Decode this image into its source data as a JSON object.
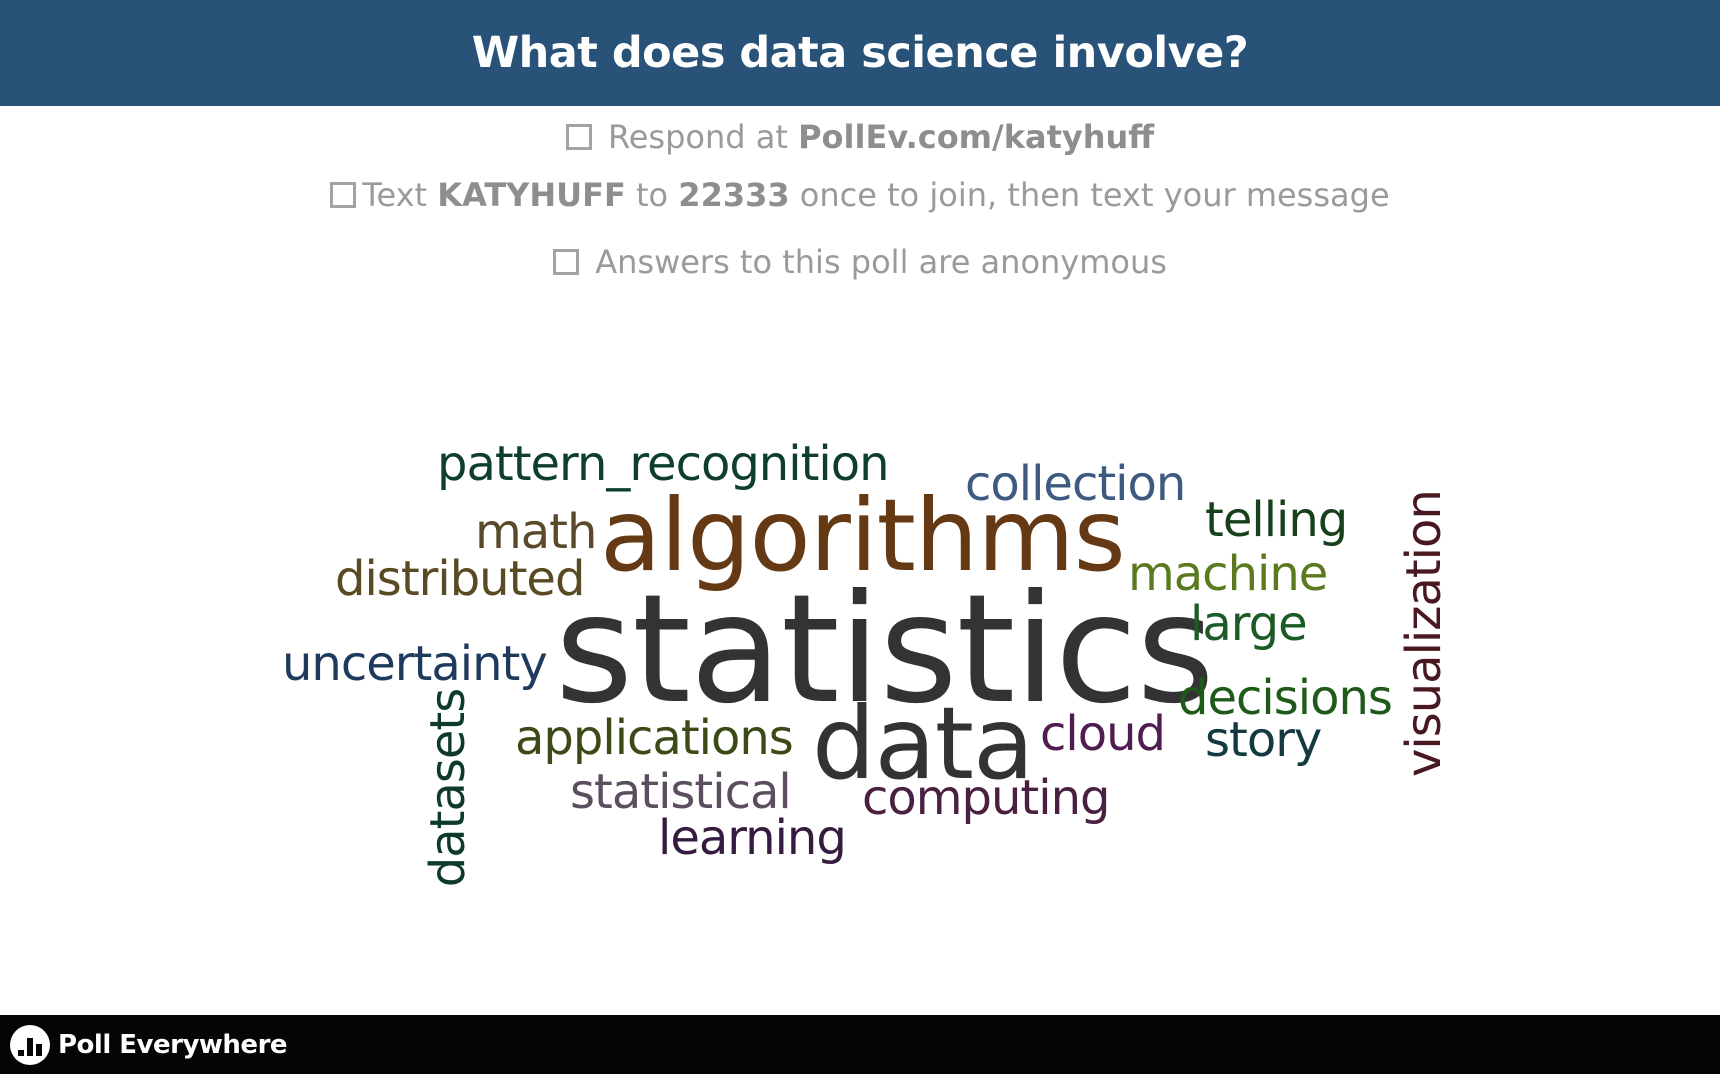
{
  "header": {
    "title": "What does data science involve?"
  },
  "instructions": {
    "line1": {
      "prefix": "Respond at ",
      "url": "PollEv.com/katyhuff"
    },
    "line2": {
      "prefix": "Text ",
      "keyword": "KATYHUFF",
      "middle": " to ",
      "number": "22333",
      "suffix": " once to join, then text your message"
    },
    "line3": {
      "text": "Answers to this poll are anonymous"
    }
  },
  "word_cloud": {
    "words": [
      {
        "text": "statistics",
        "color": "#333333"
      },
      {
        "text": "algorithms",
        "color": "#653914"
      },
      {
        "text": "data",
        "color": "#333333"
      },
      {
        "text": "pattern_recognition",
        "color": "#0e3d32"
      },
      {
        "text": "collection",
        "color": "#3e5a80"
      },
      {
        "text": "telling",
        "color": "#17401c"
      },
      {
        "text": "math",
        "color": "#5a4a2a"
      },
      {
        "text": "distributed",
        "color": "#5a4a23"
      },
      {
        "text": "machine",
        "color": "#5b7a20"
      },
      {
        "text": "large",
        "color": "#1c5a26"
      },
      {
        "text": "uncertainty",
        "color": "#1e3a5c"
      },
      {
        "text": "decisions",
        "color": "#1f5a1a"
      },
      {
        "text": "applications",
        "color": "#3b4a16"
      },
      {
        "text": "cloud",
        "color": "#4f1d4f"
      },
      {
        "text": "story",
        "color": "#123a40"
      },
      {
        "text": "statistical",
        "color": "#5a4e5f"
      },
      {
        "text": "computing",
        "color": "#4a2040"
      },
      {
        "text": "learning",
        "color": "#351b3e"
      },
      {
        "text": "datasets",
        "color": "#0d3a2c"
      },
      {
        "text": "visualization",
        "color": "#4a1820"
      }
    ]
  },
  "footer": {
    "brand": "Poll Everywhere"
  }
}
